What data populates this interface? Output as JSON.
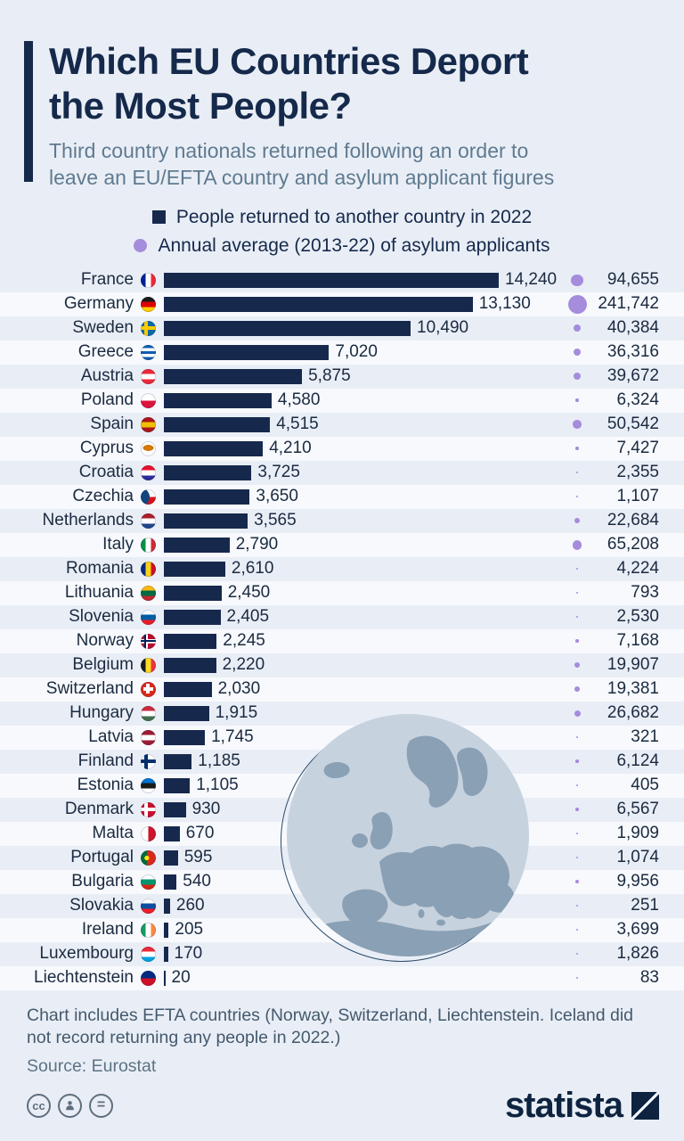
{
  "title": "Which EU Countries Deport\nthe Most People?",
  "subtitle": "Third country nationals returned following an order to\nleave an EU/EFTA country and asylum applicant figures",
  "legend": {
    "items": [
      {
        "label": "People returned to another country in 2022",
        "marker": "square",
        "color": "#16294d"
      },
      {
        "label": "Annual average (2013-22) of asylum applicants",
        "marker": "circle",
        "color": "#a58cdc"
      }
    ]
  },
  "colors": {
    "background": "#e9eef6",
    "bar": "#16294d",
    "bubble": "#a58cdc",
    "title": "#15294b",
    "subtitle": "#5f7a90"
  },
  "chart_data": {
    "type": "bar",
    "orientation": "horizontal",
    "title": "Which EU Countries Deport the Most People?",
    "series": [
      {
        "name": "People returned to another country in 2022",
        "style": "bar",
        "color": "#16294d"
      },
      {
        "name": "Annual average (2013-22) of asylum applicants",
        "style": "bubble",
        "color": "#a58cdc"
      }
    ],
    "xlim": [
      0,
      14240
    ],
    "rows": [
      {
        "country": "France",
        "returned": 14240,
        "asylum": 94655,
        "flag": {
          "type": "v",
          "colors": [
            "#002395",
            "#ffffff",
            "#ed2939"
          ]
        }
      },
      {
        "country": "Germany",
        "returned": 13130,
        "asylum": 241742,
        "flag": {
          "type": "h",
          "colors": [
            "#1a1a1a",
            "#dd0000",
            "#ffce00"
          ]
        }
      },
      {
        "country": "Sweden",
        "returned": 10490,
        "asylum": 40384,
        "flag": {
          "type": "cross",
          "bg": "#0a6aa6",
          "cross": "#fecc00"
        }
      },
      {
        "country": "Greece",
        "returned": 7020,
        "asylum": 36316,
        "flag": {
          "type": "h",
          "colors": [
            "#0d5eaf",
            "#ffffff",
            "#0d5eaf",
            "#ffffff",
            "#0d5eaf"
          ]
        }
      },
      {
        "country": "Austria",
        "returned": 5875,
        "asylum": 39672,
        "flag": {
          "type": "h",
          "colors": [
            "#ed2939",
            "#ffffff",
            "#ed2939"
          ]
        }
      },
      {
        "country": "Poland",
        "returned": 4580,
        "asylum": 6324,
        "flag": {
          "type": "h",
          "colors": [
            "#ffffff",
            "#dc143c"
          ]
        }
      },
      {
        "country": "Spain",
        "returned": 4515,
        "asylum": 50542,
        "flag": {
          "type": "h",
          "colors": [
            "#aa151b",
            "#f1bf00",
            "#aa151b"
          ]
        }
      },
      {
        "country": "Cyprus",
        "returned": 4210,
        "asylum": 7427,
        "flag": {
          "type": "plain",
          "bg": "#ffffff",
          "dot": "#d57800"
        }
      },
      {
        "country": "Croatia",
        "returned": 3725,
        "asylum": 2355,
        "flag": {
          "type": "h",
          "colors": [
            "#e8112d",
            "#ffffff",
            "#2c2c9c"
          ]
        }
      },
      {
        "country": "Czechia",
        "returned": 3650,
        "asylum": 1107,
        "flag": {
          "type": "czech",
          "top": "#ffffff",
          "bottom": "#d7141a",
          "wedge": "#11457e"
        }
      },
      {
        "country": "Netherlands",
        "returned": 3565,
        "asylum": 22684,
        "flag": {
          "type": "h",
          "colors": [
            "#ae1c28",
            "#ffffff",
            "#21468b"
          ]
        }
      },
      {
        "country": "Italy",
        "returned": 2790,
        "asylum": 65208,
        "flag": {
          "type": "v",
          "colors": [
            "#009246",
            "#ffffff",
            "#ce2b37"
          ]
        }
      },
      {
        "country": "Romania",
        "returned": 2610,
        "asylum": 4224,
        "flag": {
          "type": "v",
          "colors": [
            "#002b7f",
            "#fcd116",
            "#ce1126"
          ]
        }
      },
      {
        "country": "Lithuania",
        "returned": 2450,
        "asylum": 793,
        "flag": {
          "type": "h",
          "colors": [
            "#fdb913",
            "#006a44",
            "#c1272d"
          ]
        }
      },
      {
        "country": "Slovenia",
        "returned": 2405,
        "asylum": 2530,
        "flag": {
          "type": "h",
          "colors": [
            "#ffffff",
            "#005da4",
            "#ed1c24"
          ]
        }
      },
      {
        "country": "Norway",
        "returned": 2245,
        "asylum": 7168,
        "flag": {
          "type": "norway",
          "bg": "#ba0c2f",
          "outer": "#ffffff",
          "inner": "#00205b"
        }
      },
      {
        "country": "Belgium",
        "returned": 2220,
        "asylum": 19907,
        "flag": {
          "type": "v",
          "colors": [
            "#1a1a1a",
            "#fdda24",
            "#ef3340"
          ]
        }
      },
      {
        "country": "Switzerland",
        "returned": 2030,
        "asylum": 19381,
        "flag": {
          "type": "cross",
          "bg": "#da291c",
          "cross": "#ffffff",
          "centered": true
        }
      },
      {
        "country": "Hungary",
        "returned": 1915,
        "asylum": 26682,
        "flag": {
          "type": "h",
          "colors": [
            "#cd2a3e",
            "#ffffff",
            "#436f4d"
          ]
        }
      },
      {
        "country": "Latvia",
        "returned": 1745,
        "asylum": 321,
        "flag": {
          "type": "h",
          "colors": [
            "#9e1b32",
            "#ffffff",
            "#9e1b32"
          ]
        }
      },
      {
        "country": "Finland",
        "returned": 1185,
        "asylum": 6124,
        "flag": {
          "type": "cross",
          "bg": "#ffffff",
          "cross": "#002f6c"
        }
      },
      {
        "country": "Estonia",
        "returned": 1105,
        "asylum": 405,
        "flag": {
          "type": "h",
          "colors": [
            "#0072ce",
            "#1a1a1a",
            "#ffffff"
          ]
        }
      },
      {
        "country": "Denmark",
        "returned": 930,
        "asylum": 6567,
        "flag": {
          "type": "cross",
          "bg": "#c8102e",
          "cross": "#ffffff"
        }
      },
      {
        "country": "Malta",
        "returned": 670,
        "asylum": 1909,
        "flag": {
          "type": "v",
          "colors": [
            "#ffffff",
            "#cf142b"
          ]
        }
      },
      {
        "country": "Portugal",
        "returned": 595,
        "asylum": 1074,
        "flag": {
          "type": "portugal",
          "left": "#046a38",
          "right": "#da291c",
          "dot": "#ffe900"
        }
      },
      {
        "country": "Bulgaria",
        "returned": 540,
        "asylum": 9956,
        "flag": {
          "type": "h",
          "colors": [
            "#ffffff",
            "#00966e",
            "#d62612"
          ]
        }
      },
      {
        "country": "Slovakia",
        "returned": 260,
        "asylum": 251,
        "flag": {
          "type": "h",
          "colors": [
            "#ffffff",
            "#0b4ea2",
            "#ee1c25"
          ]
        }
      },
      {
        "country": "Ireland",
        "returned": 205,
        "asylum": 3699,
        "flag": {
          "type": "v",
          "colors": [
            "#169b62",
            "#ffffff",
            "#ff883e"
          ]
        }
      },
      {
        "country": "Luxembourg",
        "returned": 170,
        "asylum": 1826,
        "flag": {
          "type": "h",
          "colors": [
            "#ed2939",
            "#ffffff",
            "#00a1de"
          ]
        }
      },
      {
        "country": "Liechtenstein",
        "returned": 20,
        "asylum": 83,
        "flag": {
          "type": "h",
          "colors": [
            "#002b7f",
            "#ce1126"
          ]
        }
      }
    ]
  },
  "footer": {
    "note": "Chart includes EFTA countries (Norway, Switzerland, Liechtenstein. Iceland did\nnot record returning any people in 2022.)",
    "source": "Source: Eurostat"
  },
  "license_icons": [
    {
      "name": "creative-commons-icon",
      "glyph": "cc"
    },
    {
      "name": "attribution-person-icon",
      "glyph": ""
    },
    {
      "name": "equals-icon",
      "glyph": "="
    }
  ],
  "branding": {
    "logo_text": "statista"
  }
}
